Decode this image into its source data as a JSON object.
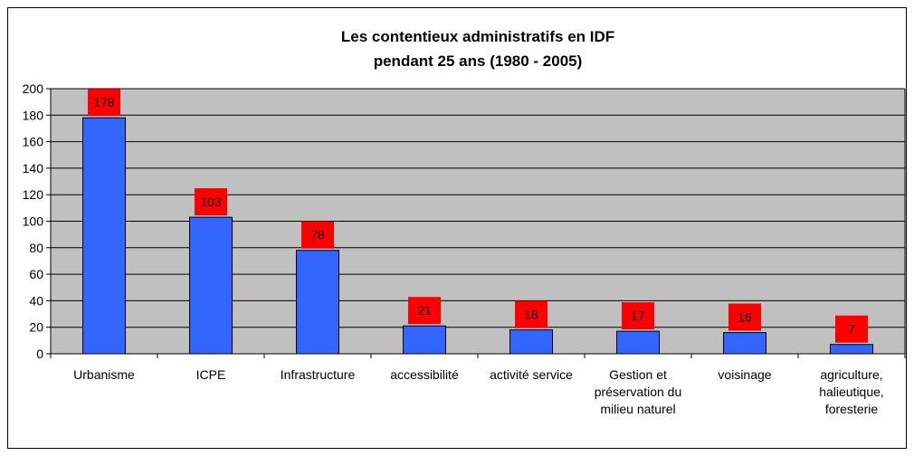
{
  "chart_data": {
    "type": "bar",
    "title": "Les contentieux administratifs en IDF",
    "subtitle": "pendant 25 ans (1980 - 2005)",
    "categories": [
      "Urbanisme",
      "ICPE",
      "Infrastructure",
      "accessibilité",
      "activité service",
      "Gestion et préservation du milieu naturel",
      "voisinage",
      "agriculture, halieutique, foresterie"
    ],
    "values": [
      178,
      103,
      78,
      21,
      18,
      17,
      16,
      7
    ],
    "color": "#3366ff",
    "label_color": "#ff0000",
    "ylim": [
      0,
      200
    ],
    "yticks": [
      0,
      20,
      40,
      60,
      80,
      100,
      120,
      140,
      160,
      180,
      200
    ],
    "grid": true
  }
}
